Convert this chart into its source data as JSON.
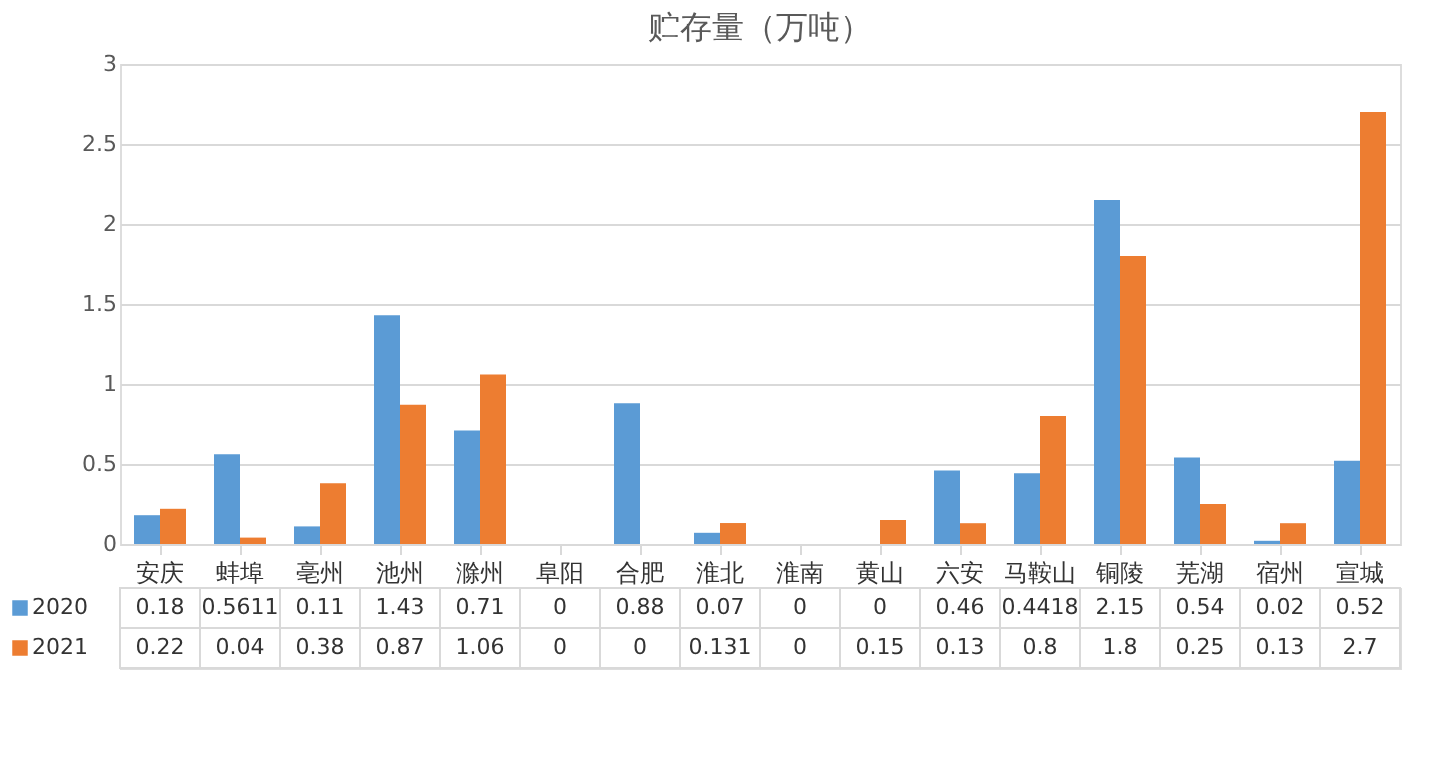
{
  "chart_data": {
    "type": "bar",
    "title": "贮存量（万吨）",
    "categories": [
      "安庆",
      "蚌埠",
      "亳州",
      "池州",
      "滁州",
      "阜阳",
      "合肥",
      "淮北",
      "淮南",
      "黄山",
      "六安",
      "马鞍山",
      "铜陵",
      "芜湖",
      "宿州",
      "宣城"
    ],
    "series": [
      {
        "name": "2020",
        "color": "#5b9bd5",
        "values": [
          0.18,
          0.5611,
          0.11,
          1.43,
          0.71,
          0,
          0.88,
          0.07,
          0,
          0,
          0.46,
          0.4418,
          2.15,
          0.54,
          0.02,
          0.52
        ]
      },
      {
        "name": "2021",
        "color": "#ed7d31",
        "values": [
          0.22,
          0.04,
          0.38,
          0.87,
          1.06,
          0,
          0,
          0.131,
          0,
          0.15,
          0.13,
          0.8,
          1.8,
          0.25,
          0.13,
          2.7
        ]
      }
    ],
    "ylim": [
      0,
      3
    ],
    "yticks": [
      0,
      0.5,
      1,
      1.5,
      2,
      2.5,
      3
    ],
    "grid": "y",
    "legend": "bottom",
    "data_labels": true
  }
}
